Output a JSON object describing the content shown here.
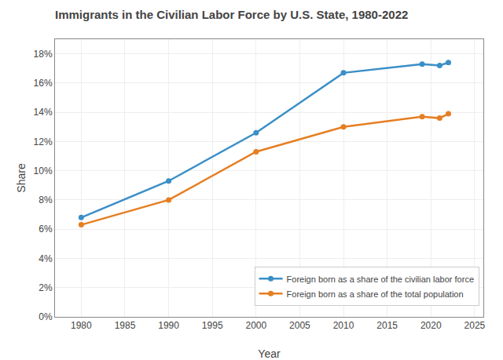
{
  "chart_data": {
    "type": "line",
    "title": "Immigrants in the Civilian Labor Force by U.S. State, 1980-2022",
    "x_label": "Year",
    "y_label": "Share",
    "x": [
      1980,
      1990,
      2000,
      2010,
      2019,
      2021,
      2022
    ],
    "series": [
      {
        "name": "Foreign born as a share of the civilian labor force",
        "color": "#3a8fc7",
        "marker": "circle",
        "values": [
          0.068,
          0.093,
          0.126,
          0.167,
          0.173,
          0.172,
          0.174
        ]
      },
      {
        "name": "Foreign born as a share of the total population",
        "color": "#E67E22",
        "marker": "circle",
        "values": [
          0.063,
          0.08,
          0.113,
          0.13,
          0.137,
          0.136,
          0.139
        ]
      }
    ],
    "xlim": [
      1977,
      2026
    ],
    "xticks": [
      1980,
      1985,
      1990,
      1995,
      2000,
      2005,
      2010,
      2015,
      2020,
      2025
    ],
    "ylim": [
      0,
      0.19
    ],
    "yticks": [
      {
        "value": 0,
        "label": "0%"
      },
      {
        "value": 0.02,
        "label": "2%"
      },
      {
        "value": 0.04,
        "label": "4%"
      },
      {
        "value": 0.06,
        "label": "6%"
      },
      {
        "value": 0.08,
        "label": "8%"
      },
      {
        "value": 0.1,
        "label": "10%"
      },
      {
        "value": 0.12,
        "label": "12%"
      },
      {
        "value": 0.14,
        "label": "14%"
      },
      {
        "value": 0.16,
        "label": "16%"
      },
      {
        "value": 0.18,
        "label": "18%"
      }
    ],
    "grid": true,
    "legend": "lower right"
  }
}
